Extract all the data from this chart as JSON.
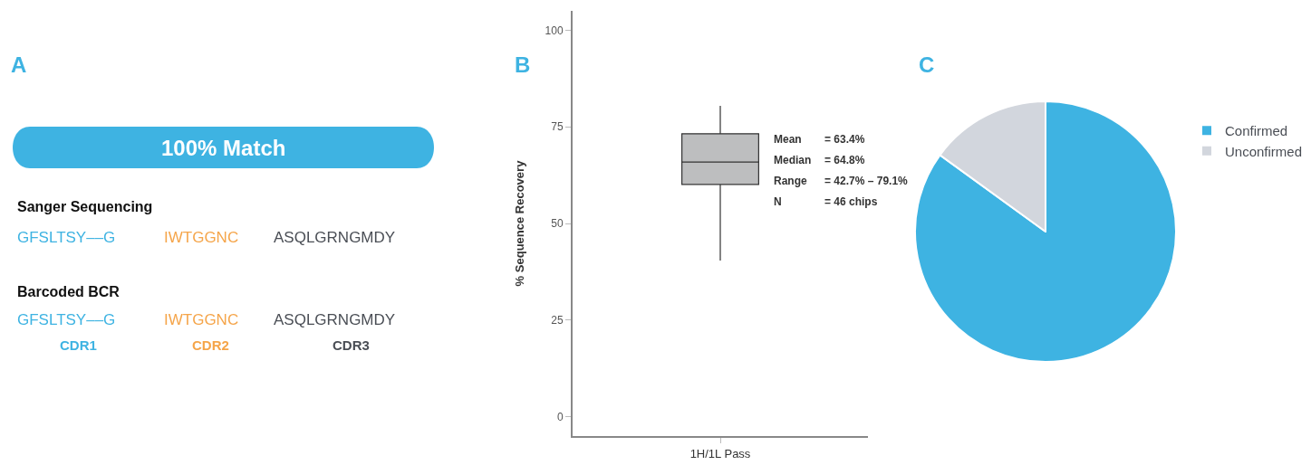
{
  "chart_data": [
    {
      "type": "other",
      "title": "A",
      "subtitle": "100% Match",
      "color": "#3eb3e2",
      "annotations": [
        "Sanger Sequencing",
        "GFSLTSY––G",
        "IWTGGNC",
        "ASQLGRNGMDY",
        "Barcoded BCR",
        "GFSLTSY––G",
        "IWTGGNC",
        "ASQLGRNGMDY",
        "CDR1",
        "CDR2",
        "CDR3"
      ],
      "colors": [
        "#111111",
        "#3eb3e2",
        "#f5a54a",
        "#4a4e55",
        "#111111",
        "#3eb3e2",
        "#f5a54a",
        "#4a4e55",
        "#3eb3e2",
        "#f5a54a",
        "#4a4e55"
      ]
    },
    {
      "type": "box",
      "title": "B",
      "categories": [
        "1H/1L Pass"
      ],
      "ylabel": "% Sequence Recovery",
      "color": "#bdbebf",
      "boxes": [
        {
          "low": 40.4,
          "q1": 60.1,
          "median": 65.9,
          "q3": 73.2,
          "high": 80.4
        }
      ],
      "ylim": [
        -5,
        105
      ],
      "yticks": [
        0,
        25,
        50,
        75,
        100
      ],
      "annotations": [
        "Mean = 63.4%",
        "Median = 64.8%",
        "Range = 42.7% – 79.1%",
        "N = 46 chips"
      ]
    },
    {
      "type": "pie",
      "title": "C",
      "categories": [
        "Confirmed",
        "Unconfirmed"
      ],
      "values": [
        85,
        15
      ],
      "colors": [
        "#3eb3e2",
        "#d2d6dd"
      ],
      "legend": "top right"
    }
  ]
}
